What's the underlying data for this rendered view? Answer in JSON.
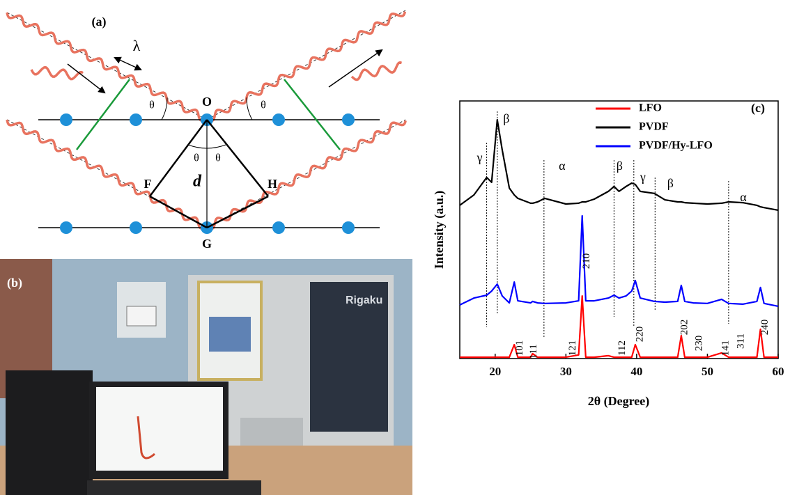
{
  "panel_a": {
    "label": "(a)",
    "wavelength": "λ",
    "angles": [
      "θ",
      "θ",
      "θ",
      "θ"
    ],
    "points": [
      "O",
      "F",
      "H",
      "G"
    ],
    "spacing": "d"
  },
  "panel_b": {
    "label": "(b)",
    "instrument_brand": "Rigaku"
  },
  "chart_data": {
    "type": "line",
    "panel_label": "(c)",
    "x_label": "2θ (Degree)",
    "y_label": "Intensity (a.u.)",
    "xlim": [
      15,
      60
    ],
    "xticks": [
      20,
      30,
      40,
      50,
      60
    ],
    "ylim": [
      0,
      100
    ],
    "legend": "upper right",
    "x": [
      15,
      17,
      18.8,
      19.5,
      20.3,
      21,
      22,
      22.7,
      23.2,
      25,
      25.3,
      26,
      27,
      30,
      31.8,
      32.3,
      32.8,
      34,
      36,
      36.8,
      37.5,
      38.5,
      39.3,
      39.8,
      40.5,
      42.5,
      44,
      45.8,
      46.3,
      46.8,
      48,
      50,
      52,
      53,
      55,
      57,
      57.5,
      58,
      60
    ],
    "series": [
      {
        "name": "LFO",
        "color": "#ff0000",
        "values": [
          0.5,
          0.5,
          0.5,
          0.5,
          0.5,
          0.5,
          0.5,
          5.4,
          0.5,
          0.5,
          1.9,
          0.5,
          0.5,
          0.5,
          1.4,
          24.3,
          0.5,
          0.5,
          1.1,
          0.5,
          0.5,
          0.5,
          0.5,
          5.4,
          0.5,
          0.5,
          0.5,
          0.5,
          8.9,
          0.5,
          0.5,
          0.5,
          2.2,
          0.5,
          0.5,
          0.5,
          11.4,
          0.5,
          0.5
        ]
      },
      {
        "name": "PVDF",
        "color": "#000000",
        "values": [
          59.5,
          63.5,
          70.3,
          68.4,
          92.7,
          81,
          66.2,
          63.5,
          62.2,
          60.3,
          60.3,
          60.8,
          62.2,
          60,
          60.3,
          60.8,
          60.8,
          61.9,
          64.9,
          66.8,
          64.9,
          66.8,
          68.1,
          67.6,
          64.9,
          64.1,
          61.6,
          60.8,
          60.8,
          60.5,
          60.3,
          60,
          60.3,
          60.8,
          60.5,
          59.5,
          58.9,
          58.6,
          57.6
        ]
      },
      {
        "name": "PVDF/Hy-LFO",
        "color": "#0000ff",
        "values": [
          20.8,
          23.5,
          24.6,
          26.2,
          28.9,
          24.3,
          21.6,
          29.7,
          22.4,
          21.6,
          22.2,
          21.6,
          21.4,
          21.6,
          22.4,
          55.4,
          22.4,
          22.4,
          23.5,
          24.6,
          23.5,
          24.3,
          26.2,
          30.3,
          23.5,
          22.2,
          21.9,
          22.2,
          28.4,
          22.2,
          21.6,
          21.4,
          23,
          21.4,
          21.1,
          22.2,
          27.6,
          21.4,
          20.3
        ]
      }
    ],
    "phase_lines": [
      {
        "x": 18.8,
        "label": "γ"
      },
      {
        "x": 20.3,
        "label": "β"
      },
      {
        "x": 26.9,
        "label": "α"
      },
      {
        "x": 36.8,
        "label": "β"
      },
      {
        "x": 39.6,
        "label": "γ"
      },
      {
        "x": 42.6,
        "label": "β"
      },
      {
        "x": 53,
        "label": "α"
      }
    ],
    "peak_labels": [
      {
        "x": 23.5,
        "label": "101"
      },
      {
        "x": 25.5,
        "label": "111"
      },
      {
        "x": 31,
        "label": "121"
      },
      {
        "x": 33,
        "label": "210"
      },
      {
        "x": 38,
        "label": "112"
      },
      {
        "x": 40.5,
        "label": "220"
      },
      {
        "x": 46.8,
        "label": "202"
      },
      {
        "x": 48.9,
        "label": "230"
      },
      {
        "x": 52.6,
        "label": "141"
      },
      {
        "x": 54.8,
        "label": "311"
      },
      {
        "x": 58.2,
        "label": "240"
      }
    ]
  }
}
